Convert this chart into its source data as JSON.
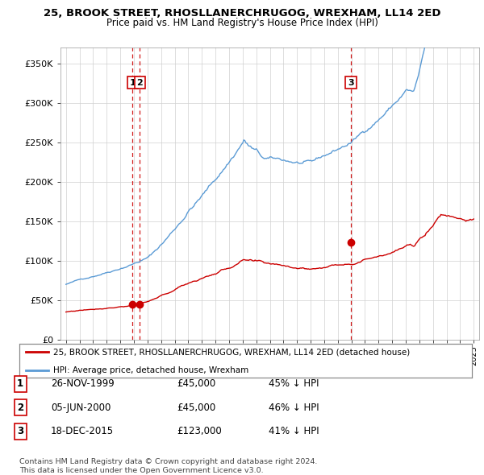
{
  "title": "25, BROOK STREET, RHOSLLANERCHRUGOG, WREXHAM, LL14 2ED",
  "subtitle": "Price paid vs. HM Land Registry's House Price Index (HPI)",
  "ylim": [
    0,
    370000
  ],
  "yticks": [
    0,
    50000,
    100000,
    150000,
    200000,
    250000,
    300000,
    350000
  ],
  "sale_dates": [
    1999.9,
    2000.43,
    2015.96
  ],
  "sale_prices": [
    45000,
    45000,
    123000
  ],
  "sale_labels": [
    "1",
    "2",
    "3"
  ],
  "vline_dates": [
    1999.9,
    2000.43,
    2015.96
  ],
  "legend_red": "25, BROOK STREET, RHOSLLANERCHRUGOG, WREXHAM, LL14 2ED (detached house)",
  "legend_blue": "HPI: Average price, detached house, Wrexham",
  "table_data": [
    [
      "1",
      "26-NOV-1999",
      "£45,000",
      "45% ↓ HPI"
    ],
    [
      "2",
      "05-JUN-2000",
      "£45,000",
      "46% ↓ HPI"
    ],
    [
      "3",
      "18-DEC-2015",
      "£123,000",
      "41% ↓ HPI"
    ]
  ],
  "footnote1": "Contains HM Land Registry data © Crown copyright and database right 2024.",
  "footnote2": "This data is licensed under the Open Government Licence v3.0.",
  "hpi_color": "#5b9bd5",
  "price_color": "#cc0000",
  "vline_color": "#cc0000",
  "bg_color": "#ffffff",
  "grid_color": "#d0d0d0"
}
